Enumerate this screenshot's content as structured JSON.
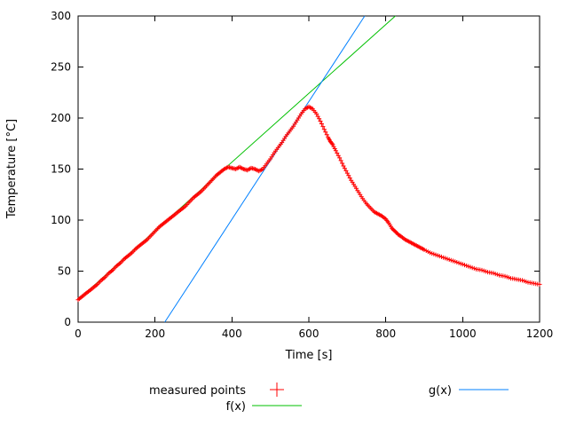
{
  "figure": {
    "background": "#ffffff",
    "text_color": "#000000"
  },
  "chart_data": {
    "type": "scatter",
    "title": "",
    "xlabel": "Time [s]",
    "ylabel": "Temperature [°C]",
    "xlim": [
      0,
      1200
    ],
    "ylim": [
      0,
      300
    ],
    "xticks": [
      0,
      200,
      400,
      600,
      800,
      1000,
      1200
    ],
    "yticks": [
      0,
      50,
      100,
      150,
      200,
      250,
      300
    ],
    "grid": false,
    "legend_position": "below-plot",
    "series": [
      {
        "name": "measured points",
        "type": "points",
        "marker": "plus",
        "color": "#ff0000",
        "points": [
          [
            0,
            22
          ],
          [
            10,
            25
          ],
          [
            20,
            28
          ],
          [
            30,
            31
          ],
          [
            40,
            34
          ],
          [
            50,
            37
          ],
          [
            60,
            41
          ],
          [
            70,
            44
          ],
          [
            80,
            48
          ],
          [
            90,
            51
          ],
          [
            100,
            55
          ],
          [
            110,
            58
          ],
          [
            120,
            62
          ],
          [
            130,
            65
          ],
          [
            140,
            68
          ],
          [
            150,
            72
          ],
          [
            160,
            75
          ],
          [
            170,
            78
          ],
          [
            180,
            81
          ],
          [
            190,
            85
          ],
          [
            200,
            89
          ],
          [
            210,
            93
          ],
          [
            220,
            96
          ],
          [
            230,
            99
          ],
          [
            240,
            102
          ],
          [
            250,
            105
          ],
          [
            260,
            108
          ],
          [
            270,
            111
          ],
          [
            280,
            114
          ],
          [
            290,
            118
          ],
          [
            300,
            122
          ],
          [
            310,
            125
          ],
          [
            320,
            128
          ],
          [
            330,
            132
          ],
          [
            340,
            136
          ],
          [
            350,
            140
          ],
          [
            360,
            144
          ],
          [
            370,
            147
          ],
          [
            380,
            150
          ],
          [
            390,
            152
          ],
          [
            400,
            151
          ],
          [
            410,
            150
          ],
          [
            420,
            152
          ],
          [
            430,
            150
          ],
          [
            440,
            149
          ],
          [
            450,
            151
          ],
          [
            460,
            150
          ],
          [
            470,
            148
          ],
          [
            480,
            150
          ],
          [
            490,
            155
          ],
          [
            500,
            160
          ],
          [
            510,
            166
          ],
          [
            520,
            171
          ],
          [
            530,
            176
          ],
          [
            540,
            182
          ],
          [
            550,
            187
          ],
          [
            560,
            192
          ],
          [
            570,
            198
          ],
          [
            580,
            204
          ],
          [
            590,
            209
          ],
          [
            600,
            211
          ],
          [
            610,
            209
          ],
          [
            620,
            204
          ],
          [
            630,
            197
          ],
          [
            640,
            189
          ],
          [
            650,
            181
          ],
          [
            656,
            177
          ],
          [
            662,
            174
          ],
          [
            670,
            168
          ],
          [
            680,
            161
          ],
          [
            690,
            153
          ],
          [
            700,
            146
          ],
          [
            710,
            139
          ],
          [
            720,
            133
          ],
          [
            730,
            127
          ],
          [
            740,
            121
          ],
          [
            750,
            116
          ],
          [
            760,
            112
          ],
          [
            770,
            108
          ],
          [
            780,
            106
          ],
          [
            790,
            104
          ],
          [
            800,
            101
          ],
          [
            808,
            97
          ],
          [
            816,
            92
          ],
          [
            824,
            89
          ],
          [
            832,
            86
          ],
          [
            840,
            84
          ],
          [
            850,
            81
          ],
          [
            860,
            79
          ],
          [
            870,
            77
          ],
          [
            880,
            75
          ],
          [
            890,
            73
          ],
          [
            900,
            71
          ],
          [
            915,
            68
          ],
          [
            930,
            66
          ],
          [
            945,
            64
          ],
          [
            960,
            62
          ],
          [
            975,
            60
          ],
          [
            990,
            58
          ],
          [
            1005,
            56
          ],
          [
            1020,
            54
          ],
          [
            1035,
            52
          ],
          [
            1050,
            51
          ],
          [
            1065,
            49
          ],
          [
            1080,
            48
          ],
          [
            1095,
            46
          ],
          [
            1110,
            45
          ],
          [
            1125,
            43
          ],
          [
            1140,
            42
          ],
          [
            1155,
            41
          ],
          [
            1170,
            39
          ],
          [
            1185,
            38
          ],
          [
            1200,
            37
          ]
        ]
      },
      {
        "name": "f(x)",
        "type": "line",
        "color": "#00c000",
        "slope": 0.337,
        "intercept": 22
      },
      {
        "name": "g(x)",
        "type": "line",
        "color": "#0080ff",
        "slope": 0.577,
        "intercept": -130
      }
    ]
  }
}
